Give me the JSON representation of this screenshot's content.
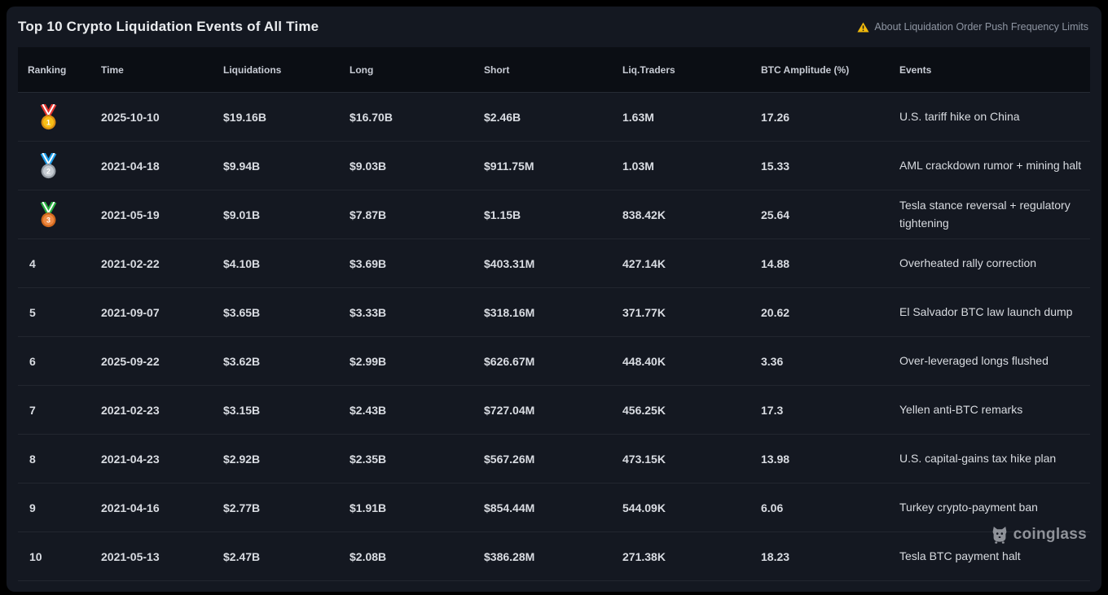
{
  "page": {
    "title": "Top 10 Crypto Liquidation Events of All Time",
    "notice": "About Liquidation Order Push Frequency Limits",
    "watermark": "coinglass"
  },
  "colors": {
    "accent_yellow": "#f0b90b",
    "panel_bg": "#141821",
    "header_bg": "#0b0e14",
    "divider": "#22262f",
    "text_primary": "#d9dce2",
    "text_muted": "#8f96a3"
  },
  "medals": {
    "gold": {
      "ribbon": "#e3342f",
      "stripe": "#ffffff",
      "rim": "#dd9112",
      "face": "#f7bf17",
      "num": "#ffffff"
    },
    "silver": {
      "ribbon": "#1e9de8",
      "stripe": "#ffffff",
      "rim": "#9aa1a9",
      "face": "#c6ccd3",
      "num": "#ffffff"
    },
    "bronze": {
      "ribbon": "#27ae3f",
      "stripe": "#ffffff",
      "rim": "#d2691e",
      "face": "#ef8a43",
      "num": "#ffffff"
    }
  },
  "table": {
    "columns": [
      "Ranking",
      "Time",
      "Liquidations",
      "Long",
      "Short",
      "Liq.Traders",
      "BTC Amplitude (%)",
      "Events"
    ],
    "rows": [
      {
        "rank": "1",
        "medal": "gold",
        "time": "2025-10-10",
        "liquidations": "$19.16B",
        "long": "$16.70B",
        "short": "$2.46B",
        "liq_traders": "1.63M",
        "btc_amplitude": "17.26",
        "events": "U.S. tariff hike on China"
      },
      {
        "rank": "2",
        "medal": "silver",
        "time": "2021-04-18",
        "liquidations": "$9.94B",
        "long": "$9.03B",
        "short": "$911.75M",
        "liq_traders": "1.03M",
        "btc_amplitude": "15.33",
        "events": "AML crackdown rumor + mining halt"
      },
      {
        "rank": "3",
        "medal": "bronze",
        "time": "2021-05-19",
        "liquidations": "$9.01B",
        "long": "$7.87B",
        "short": "$1.15B",
        "liq_traders": "838.42K",
        "btc_amplitude": "25.64",
        "events": "Tesla stance reversal + regulatory tightening"
      },
      {
        "rank": "4",
        "medal": null,
        "time": "2021-02-22",
        "liquidations": "$4.10B",
        "long": "$3.69B",
        "short": "$403.31M",
        "liq_traders": "427.14K",
        "btc_amplitude": "14.88",
        "events": "Overheated rally correction"
      },
      {
        "rank": "5",
        "medal": null,
        "time": "2021-09-07",
        "liquidations": "$3.65B",
        "long": "$3.33B",
        "short": "$318.16M",
        "liq_traders": "371.77K",
        "btc_amplitude": "20.62",
        "events": "El Salvador BTC law launch dump"
      },
      {
        "rank": "6",
        "medal": null,
        "time": "2025-09-22",
        "liquidations": "$3.62B",
        "long": "$2.99B",
        "short": "$626.67M",
        "liq_traders": "448.40K",
        "btc_amplitude": "3.36",
        "events": "Over-leveraged longs flushed"
      },
      {
        "rank": "7",
        "medal": null,
        "time": "2021-02-23",
        "liquidations": "$3.15B",
        "long": "$2.43B",
        "short": "$727.04M",
        "liq_traders": "456.25K",
        "btc_amplitude": "17.3",
        "events": "Yellen anti-BTC remarks"
      },
      {
        "rank": "8",
        "medal": null,
        "time": "2021-04-23",
        "liquidations": "$2.92B",
        "long": "$2.35B",
        "short": "$567.26M",
        "liq_traders": "473.15K",
        "btc_amplitude": "13.98",
        "events": "U.S. capital-gains tax hike plan"
      },
      {
        "rank": "9",
        "medal": null,
        "time": "2021-04-16",
        "liquidations": "$2.77B",
        "long": "$1.91B",
        "short": "$854.44M",
        "liq_traders": "544.09K",
        "btc_amplitude": "6.06",
        "events": "Turkey crypto-payment ban"
      },
      {
        "rank": "10",
        "medal": null,
        "time": "2021-05-13",
        "liquidations": "$2.47B",
        "long": "$2.08B",
        "short": "$386.28M",
        "liq_traders": "271.38K",
        "btc_amplitude": "18.23",
        "events": "Tesla BTC payment halt"
      }
    ]
  }
}
